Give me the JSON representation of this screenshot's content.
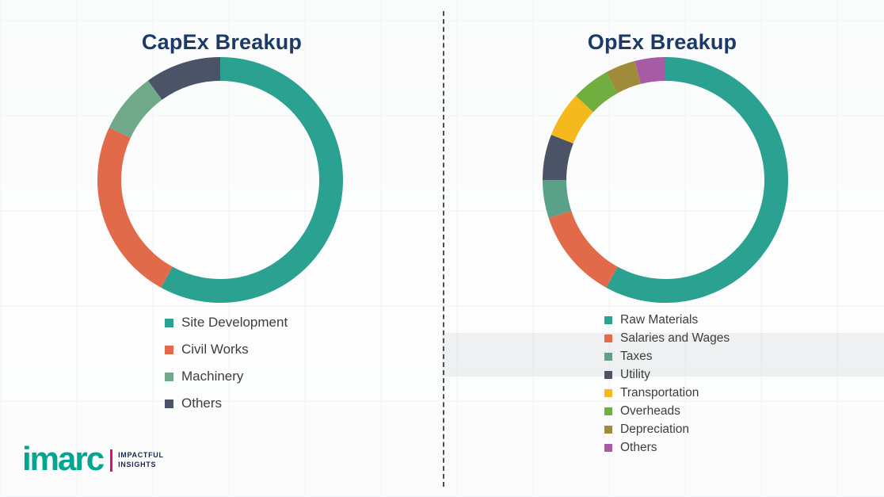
{
  "chart_data": [
    {
      "type": "pie",
      "style": "donut",
      "title": "CapEx Breakup",
      "categories": [
        "Site Development",
        "Civil Works",
        "Machinery",
        "Others"
      ],
      "values": [
        58,
        24,
        8,
        10
      ],
      "values_estimated": true,
      "units": "percent",
      "colors": [
        "#2aa191",
        "#e06a4a",
        "#6fa98a",
        "#4b5367"
      ],
      "legend_position": "bottom"
    },
    {
      "type": "pie",
      "style": "donut",
      "title": "OpEx Breakup",
      "categories": [
        "Raw Materials",
        "Salaries and Wages",
        "Taxes",
        "Utility",
        "Transportation",
        "Overheads",
        "Depreciation",
        "Others"
      ],
      "values": [
        58,
        12,
        5,
        6,
        6,
        5,
        4,
        4
      ],
      "values_estimated": true,
      "units": "percent",
      "colors": [
        "#2aa191",
        "#e06a4a",
        "#5ba187",
        "#4b5367",
        "#f5b91e",
        "#6fae3f",
        "#a08b3b",
        "#a65ba4"
      ],
      "legend_position": "bottom"
    }
  ],
  "logo": {
    "text": "imarc",
    "tagline_line1": "IMPACTFUL",
    "tagline_line2": "INSIGHTS"
  },
  "colors": {
    "title": "#1b3a68",
    "legend_text": "#3d3d3d",
    "logo_teal": "#00a78e",
    "logo_accent": "#e5097f",
    "divider": "#4e4e4e"
  }
}
